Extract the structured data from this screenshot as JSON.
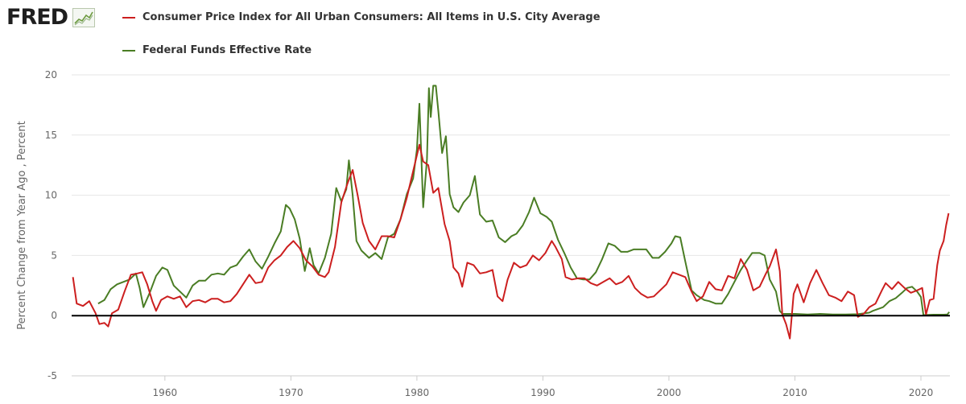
{
  "logo": {
    "text": "FRED",
    "icon": "trend-chart-icon"
  },
  "colors": {
    "cpi": "#cc1f1f",
    "fedfunds": "#4a7d24",
    "grid": "#e6e6e6",
    "zero_line": "#000000"
  },
  "chart_data": {
    "type": "line",
    "title": "",
    "xlabel": "",
    "ylabel": "Percent Change from Year Ago , Percent",
    "xlim": [
      1952.6,
      2022.3
    ],
    "ylim": [
      -5,
      20
    ],
    "yticks": [
      -5,
      0,
      5,
      10,
      15,
      20
    ],
    "xticks": [
      1960,
      1970,
      1980,
      1990,
      2000,
      2010,
      2020
    ],
    "grid": true,
    "legend_position": "top-left",
    "series": [
      {
        "name": "Consumer Price Index for All Urban Consumers: All Items in U.S. City Average",
        "color": "#cc1f1f",
        "points": [
          [
            1952.7,
            3.2
          ],
          [
            1953.0,
            1.0
          ],
          [
            1953.5,
            0.8
          ],
          [
            1954.0,
            1.2
          ],
          [
            1954.5,
            0.2
          ],
          [
            1954.8,
            -0.7
          ],
          [
            1955.2,
            -0.6
          ],
          [
            1955.5,
            -0.9
          ],
          [
            1955.8,
            0.2
          ],
          [
            1956.3,
            0.5
          ],
          [
            1956.8,
            2.0
          ],
          [
            1957.3,
            3.4
          ],
          [
            1957.8,
            3.5
          ],
          [
            1958.2,
            3.6
          ],
          [
            1958.6,
            2.6
          ],
          [
            1959.0,
            1.2
          ],
          [
            1959.3,
            0.4
          ],
          [
            1959.7,
            1.3
          ],
          [
            1960.2,
            1.6
          ],
          [
            1960.7,
            1.4
          ],
          [
            1961.2,
            1.6
          ],
          [
            1961.7,
            0.7
          ],
          [
            1962.2,
            1.2
          ],
          [
            1962.7,
            1.3
          ],
          [
            1963.2,
            1.1
          ],
          [
            1963.7,
            1.4
          ],
          [
            1964.2,
            1.4
          ],
          [
            1964.7,
            1.1
          ],
          [
            1965.2,
            1.2
          ],
          [
            1965.7,
            1.8
          ],
          [
            1966.2,
            2.6
          ],
          [
            1966.7,
            3.4
          ],
          [
            1967.2,
            2.7
          ],
          [
            1967.7,
            2.8
          ],
          [
            1968.2,
            4.0
          ],
          [
            1968.7,
            4.6
          ],
          [
            1969.2,
            5.0
          ],
          [
            1969.7,
            5.7
          ],
          [
            1970.2,
            6.2
          ],
          [
            1970.7,
            5.6
          ],
          [
            1971.2,
            4.6
          ],
          [
            1971.7,
            4.1
          ],
          [
            1972.2,
            3.4
          ],
          [
            1972.7,
            3.2
          ],
          [
            1973.0,
            3.6
          ],
          [
            1973.5,
            5.7
          ],
          [
            1974.0,
            9.4
          ],
          [
            1974.5,
            11.0
          ],
          [
            1974.9,
            12.1
          ],
          [
            1975.3,
            10.0
          ],
          [
            1975.7,
            7.7
          ],
          [
            1976.2,
            6.2
          ],
          [
            1976.7,
            5.5
          ],
          [
            1977.2,
            6.6
          ],
          [
            1977.7,
            6.6
          ],
          [
            1978.2,
            6.5
          ],
          [
            1978.7,
            8.0
          ],
          [
            1979.2,
            9.8
          ],
          [
            1979.7,
            12.0
          ],
          [
            1980.2,
            14.2
          ],
          [
            1980.5,
            12.8
          ],
          [
            1980.9,
            12.5
          ],
          [
            1981.3,
            10.2
          ],
          [
            1981.7,
            10.6
          ],
          [
            1982.2,
            7.6
          ],
          [
            1982.6,
            6.2
          ],
          [
            1982.9,
            4.0
          ],
          [
            1983.3,
            3.5
          ],
          [
            1983.6,
            2.4
          ],
          [
            1984.0,
            4.4
          ],
          [
            1984.5,
            4.2
          ],
          [
            1985.0,
            3.5
          ],
          [
            1985.5,
            3.6
          ],
          [
            1986.0,
            3.8
          ],
          [
            1986.4,
            1.6
          ],
          [
            1986.8,
            1.2
          ],
          [
            1987.2,
            3.0
          ],
          [
            1987.7,
            4.4
          ],
          [
            1988.2,
            4.0
          ],
          [
            1988.7,
            4.2
          ],
          [
            1989.2,
            5.0
          ],
          [
            1989.7,
            4.6
          ],
          [
            1990.2,
            5.2
          ],
          [
            1990.7,
            6.2
          ],
          [
            1991.0,
            5.7
          ],
          [
            1991.5,
            4.7
          ],
          [
            1991.8,
            3.2
          ],
          [
            1992.3,
            3.0
          ],
          [
            1992.8,
            3.1
          ],
          [
            1993.3,
            3.1
          ],
          [
            1993.8,
            2.7
          ],
          [
            1994.3,
            2.5
          ],
          [
            1994.8,
            2.8
          ],
          [
            1995.3,
            3.1
          ],
          [
            1995.8,
            2.6
          ],
          [
            1996.3,
            2.8
          ],
          [
            1996.8,
            3.3
          ],
          [
            1997.3,
            2.3
          ],
          [
            1997.8,
            1.8
          ],
          [
            1998.3,
            1.5
          ],
          [
            1998.8,
            1.6
          ],
          [
            1999.3,
            2.1
          ],
          [
            1999.8,
            2.6
          ],
          [
            2000.3,
            3.6
          ],
          [
            2000.8,
            3.4
          ],
          [
            2001.3,
            3.2
          ],
          [
            2001.8,
            2.0
          ],
          [
            2002.2,
            1.2
          ],
          [
            2002.7,
            1.6
          ],
          [
            2003.2,
            2.8
          ],
          [
            2003.7,
            2.2
          ],
          [
            2004.2,
            2.1
          ],
          [
            2004.7,
            3.3
          ],
          [
            2005.2,
            3.1
          ],
          [
            2005.7,
            4.7
          ],
          [
            2006.2,
            3.8
          ],
          [
            2006.7,
            2.1
          ],
          [
            2007.2,
            2.4
          ],
          [
            2007.7,
            3.5
          ],
          [
            2008.0,
            4.1
          ],
          [
            2008.5,
            5.5
          ],
          [
            2008.8,
            3.7
          ],
          [
            2009.0,
            0.1
          ],
          [
            2009.3,
            -0.7
          ],
          [
            2009.6,
            -1.9
          ],
          [
            2009.9,
            1.8
          ],
          [
            2010.2,
            2.6
          ],
          [
            2010.7,
            1.1
          ],
          [
            2011.2,
            2.7
          ],
          [
            2011.7,
            3.8
          ],
          [
            2012.2,
            2.7
          ],
          [
            2012.7,
            1.7
          ],
          [
            2013.2,
            1.5
          ],
          [
            2013.7,
            1.2
          ],
          [
            2014.2,
            2.0
          ],
          [
            2014.7,
            1.7
          ],
          [
            2015.0,
            -0.1
          ],
          [
            2015.5,
            0.2
          ],
          [
            2015.9,
            0.7
          ],
          [
            2016.4,
            1.0
          ],
          [
            2016.9,
            2.1
          ],
          [
            2017.2,
            2.7
          ],
          [
            2017.7,
            2.2
          ],
          [
            2018.2,
            2.8
          ],
          [
            2018.7,
            2.3
          ],
          [
            2019.2,
            1.9
          ],
          [
            2019.7,
            2.1
          ],
          [
            2020.1,
            2.3
          ],
          [
            2020.4,
            0.1
          ],
          [
            2020.7,
            1.3
          ],
          [
            2021.0,
            1.4
          ],
          [
            2021.3,
            4.2
          ],
          [
            2021.5,
            5.4
          ],
          [
            2021.8,
            6.2
          ],
          [
            2022.0,
            7.5
          ],
          [
            2022.2,
            8.5
          ]
        ]
      },
      {
        "name": "Federal Funds Effective Rate",
        "color": "#4a7d24",
        "points": [
          [
            1954.7,
            1.0
          ],
          [
            1955.2,
            1.3
          ],
          [
            1955.7,
            2.2
          ],
          [
            1956.2,
            2.6
          ],
          [
            1956.7,
            2.8
          ],
          [
            1957.2,
            3.0
          ],
          [
            1957.7,
            3.5
          ],
          [
            1958.0,
            2.3
          ],
          [
            1958.3,
            0.7
          ],
          [
            1958.8,
            1.9
          ],
          [
            1959.3,
            3.3
          ],
          [
            1959.8,
            4.0
          ],
          [
            1960.2,
            3.8
          ],
          [
            1960.7,
            2.5
          ],
          [
            1961.2,
            2.0
          ],
          [
            1961.7,
            1.5
          ],
          [
            1962.2,
            2.5
          ],
          [
            1962.7,
            2.9
          ],
          [
            1963.2,
            2.9
          ],
          [
            1963.7,
            3.4
          ],
          [
            1964.2,
            3.5
          ],
          [
            1964.7,
            3.4
          ],
          [
            1965.2,
            4.0
          ],
          [
            1965.7,
            4.2
          ],
          [
            1966.2,
            4.9
          ],
          [
            1966.7,
            5.5
          ],
          [
            1967.2,
            4.5
          ],
          [
            1967.7,
            3.9
          ],
          [
            1968.2,
            4.9
          ],
          [
            1968.7,
            6.0
          ],
          [
            1969.2,
            7.0
          ],
          [
            1969.6,
            9.2
          ],
          [
            1969.9,
            8.9
          ],
          [
            1970.3,
            8.0
          ],
          [
            1970.7,
            6.4
          ],
          [
            1971.1,
            3.7
          ],
          [
            1971.5,
            5.6
          ],
          [
            1971.8,
            4.2
          ],
          [
            1972.2,
            3.5
          ],
          [
            1972.7,
            4.8
          ],
          [
            1973.2,
            6.8
          ],
          [
            1973.6,
            10.6
          ],
          [
            1974.0,
            9.5
          ],
          [
            1974.4,
            10.5
          ],
          [
            1974.6,
            12.9
          ],
          [
            1974.9,
            10.0
          ],
          [
            1975.2,
            6.2
          ],
          [
            1975.6,
            5.4
          ],
          [
            1976.2,
            4.8
          ],
          [
            1976.7,
            5.2
          ],
          [
            1977.2,
            4.7
          ],
          [
            1977.7,
            6.5
          ],
          [
            1978.2,
            6.8
          ],
          [
            1978.7,
            8.0
          ],
          [
            1979.2,
            10.1
          ],
          [
            1979.7,
            11.4
          ],
          [
            1980.0,
            13.8
          ],
          [
            1980.2,
            17.6
          ],
          [
            1980.5,
            9.0
          ],
          [
            1980.8,
            13.0
          ],
          [
            1980.95,
            18.9
          ],
          [
            1981.1,
            16.5
          ],
          [
            1981.3,
            19.1
          ],
          [
            1981.5,
            19.1
          ],
          [
            1981.7,
            17.0
          ],
          [
            1982.0,
            13.5
          ],
          [
            1982.3,
            14.9
          ],
          [
            1982.6,
            10.1
          ],
          [
            1982.9,
            9.0
          ],
          [
            1983.3,
            8.6
          ],
          [
            1983.7,
            9.4
          ],
          [
            1984.2,
            10.0
          ],
          [
            1984.6,
            11.6
          ],
          [
            1985.0,
            8.4
          ],
          [
            1985.5,
            7.8
          ],
          [
            1986.0,
            7.9
          ],
          [
            1986.5,
            6.5
          ],
          [
            1987.0,
            6.1
          ],
          [
            1987.5,
            6.6
          ],
          [
            1987.9,
            6.8
          ],
          [
            1988.4,
            7.5
          ],
          [
            1988.9,
            8.6
          ],
          [
            1989.3,
            9.8
          ],
          [
            1989.8,
            8.5
          ],
          [
            1990.3,
            8.2
          ],
          [
            1990.7,
            7.8
          ],
          [
            1991.2,
            6.3
          ],
          [
            1991.7,
            5.2
          ],
          [
            1992.2,
            4.0
          ],
          [
            1992.7,
            3.1
          ],
          [
            1993.2,
            3.0
          ],
          [
            1993.7,
            3.0
          ],
          [
            1994.2,
            3.6
          ],
          [
            1994.7,
            4.7
          ],
          [
            1995.2,
            6.0
          ],
          [
            1995.7,
            5.8
          ],
          [
            1996.2,
            5.3
          ],
          [
            1996.7,
            5.3
          ],
          [
            1997.2,
            5.5
          ],
          [
            1997.7,
            5.5
          ],
          [
            1998.2,
            5.5
          ],
          [
            1998.7,
            4.8
          ],
          [
            1999.2,
            4.8
          ],
          [
            1999.7,
            5.3
          ],
          [
            2000.2,
            6.0
          ],
          [
            2000.5,
            6.6
          ],
          [
            2000.9,
            6.5
          ],
          [
            2001.3,
            4.5
          ],
          [
            2001.8,
            2.1
          ],
          [
            2002.2,
            1.7
          ],
          [
            2002.8,
            1.3
          ],
          [
            2003.2,
            1.2
          ],
          [
            2003.7,
            1.0
          ],
          [
            2004.2,
            1.0
          ],
          [
            2004.7,
            1.8
          ],
          [
            2005.2,
            2.8
          ],
          [
            2005.7,
            3.8
          ],
          [
            2006.2,
            4.6
          ],
          [
            2006.6,
            5.2
          ],
          [
            2007.2,
            5.2
          ],
          [
            2007.6,
            5.0
          ],
          [
            2008.0,
            3.0
          ],
          [
            2008.5,
            2.0
          ],
          [
            2008.8,
            0.4
          ],
          [
            2009.0,
            0.15
          ],
          [
            2010.0,
            0.15
          ],
          [
            2011.0,
            0.1
          ],
          [
            2012.0,
            0.15
          ],
          [
            2013.0,
            0.1
          ],
          [
            2014.0,
            0.1
          ],
          [
            2015.0,
            0.12
          ],
          [
            2015.9,
            0.25
          ],
          [
            2016.2,
            0.4
          ],
          [
            2017.0,
            0.7
          ],
          [
            2017.5,
            1.2
          ],
          [
            2018.0,
            1.45
          ],
          [
            2018.5,
            1.9
          ],
          [
            2018.9,
            2.3
          ],
          [
            2019.3,
            2.4
          ],
          [
            2019.7,
            2.0
          ],
          [
            2020.0,
            1.55
          ],
          [
            2020.2,
            0.05
          ],
          [
            2021.0,
            0.08
          ],
          [
            2021.8,
            0.08
          ],
          [
            2022.1,
            0.1
          ],
          [
            2022.25,
            0.3
          ]
        ]
      }
    ]
  }
}
